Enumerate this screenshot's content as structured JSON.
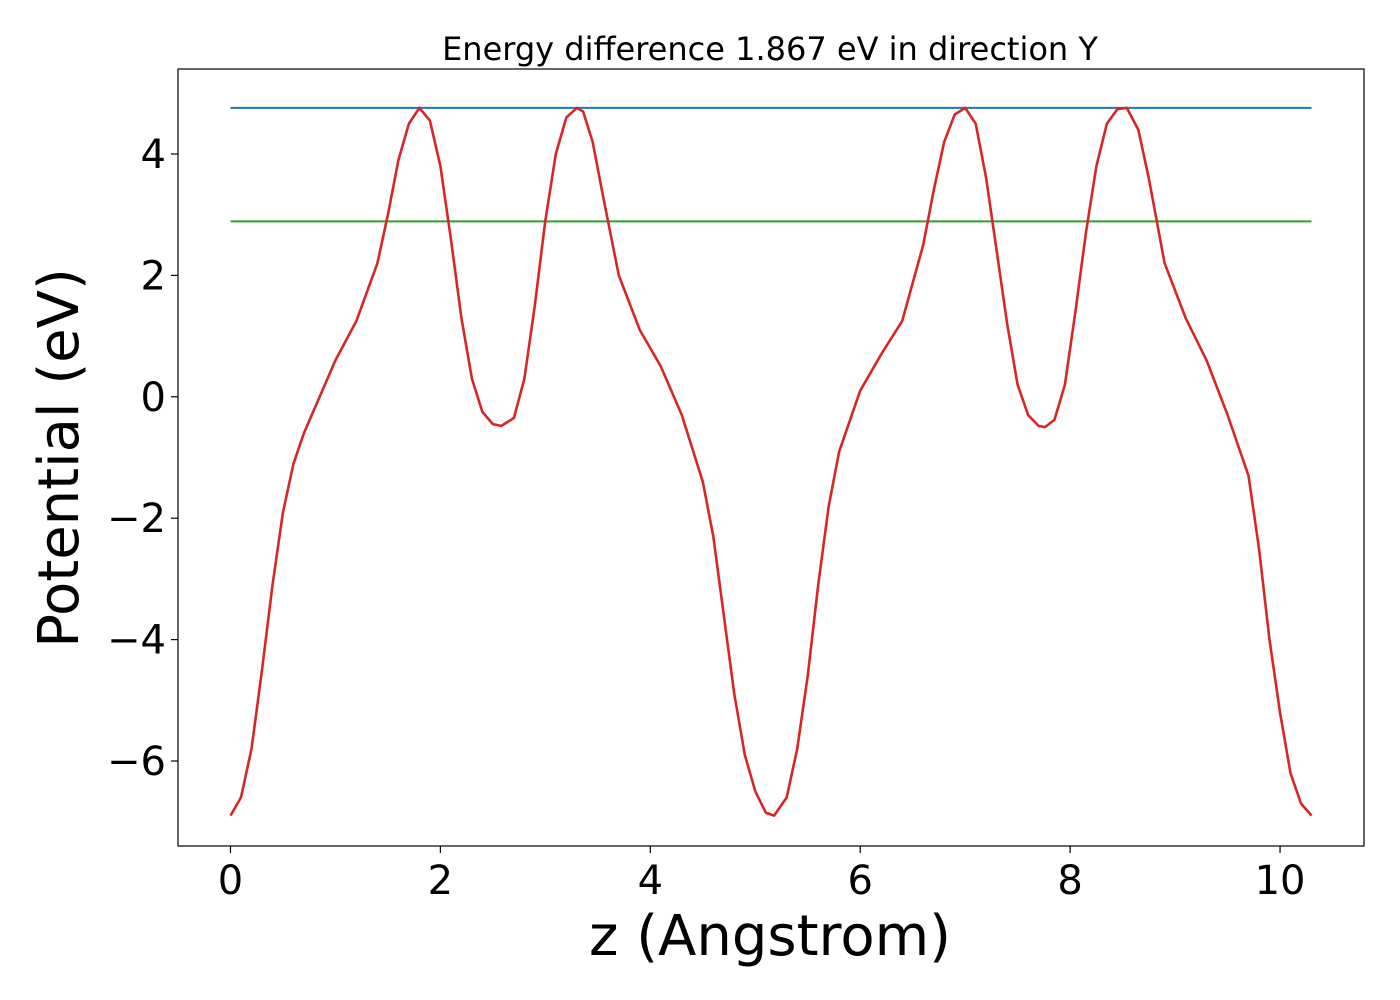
{
  "chart_data": {
    "type": "line",
    "title": "Energy difference 1.867 eV in direction Y",
    "xlabel": "z (Angstrom)",
    "ylabel": "Potential (eV)",
    "xlim": [
      -0.5,
      10.8
    ],
    "ylim": [
      -7.4,
      5.4
    ],
    "xticks": [
      0,
      2,
      4,
      6,
      8,
      10
    ],
    "xtick_labels": [
      "0",
      "2",
      "4",
      "6",
      "8",
      "10"
    ],
    "yticks": [
      4,
      2,
      0,
      -2,
      -4,
      -6
    ],
    "ytick_labels": [
      "4",
      "2",
      "0",
      "−2",
      "−4",
      "−6"
    ],
    "grid": false,
    "series": [
      {
        "color": "#1f77b4",
        "x": [
          0,
          10.3
        ],
        "y": [
          4.76,
          4.76
        ]
      },
      {
        "color": "#2ca02c",
        "x": [
          0,
          10.3
        ],
        "y": [
          2.89,
          2.89
        ]
      },
      {
        "color": "#d62728",
        "x": [
          0.0,
          0.1,
          0.2,
          0.3,
          0.4,
          0.5,
          0.6,
          0.7,
          0.8,
          1.0,
          1.2,
          1.4,
          1.5,
          1.6,
          1.7,
          1.8,
          1.9,
          2.0,
          2.1,
          2.2,
          2.3,
          2.4,
          2.5,
          2.58,
          2.7,
          2.8,
          2.9,
          3.0,
          3.1,
          3.2,
          3.3,
          3.36,
          3.45,
          3.55,
          3.7,
          3.9,
          4.1,
          4.3,
          4.5,
          4.6,
          4.7,
          4.8,
          4.9,
          5.0,
          5.1,
          5.18,
          5.3,
          5.4,
          5.5,
          5.6,
          5.7,
          5.8,
          6.0,
          6.2,
          6.4,
          6.6,
          6.7,
          6.8,
          6.9,
          7.0,
          7.1,
          7.2,
          7.3,
          7.4,
          7.5,
          7.6,
          7.7,
          7.76,
          7.85,
          7.95,
          8.05,
          8.15,
          8.25,
          8.35,
          8.45,
          8.54,
          8.65,
          8.75,
          8.9,
          9.1,
          9.3,
          9.5,
          9.7,
          9.8,
          9.9,
          10.0,
          10.1,
          10.2,
          10.3
        ],
        "y": [
          -6.9,
          -6.6,
          -5.8,
          -4.5,
          -3.1,
          -1.9,
          -1.1,
          -0.6,
          -0.2,
          0.6,
          1.25,
          2.2,
          3.0,
          3.9,
          4.5,
          4.76,
          4.55,
          3.8,
          2.6,
          1.3,
          0.3,
          -0.25,
          -0.45,
          -0.48,
          -0.35,
          0.3,
          1.5,
          2.9,
          4.0,
          4.6,
          4.76,
          4.7,
          4.2,
          3.3,
          2.0,
          1.1,
          0.5,
          -0.3,
          -1.4,
          -2.3,
          -3.6,
          -4.9,
          -5.9,
          -6.5,
          -6.85,
          -6.9,
          -6.6,
          -5.8,
          -4.6,
          -3.1,
          -1.8,
          -0.9,
          0.1,
          0.7,
          1.25,
          2.5,
          3.4,
          4.2,
          4.65,
          4.76,
          4.5,
          3.6,
          2.4,
          1.2,
          0.2,
          -0.3,
          -0.48,
          -0.5,
          -0.38,
          0.2,
          1.4,
          2.7,
          3.8,
          4.5,
          4.74,
          4.76,
          4.4,
          3.6,
          2.2,
          1.3,
          0.6,
          -0.3,
          -1.3,
          -2.5,
          -4.0,
          -5.2,
          -6.2,
          -6.7,
          -6.9
        ]
      }
    ]
  }
}
